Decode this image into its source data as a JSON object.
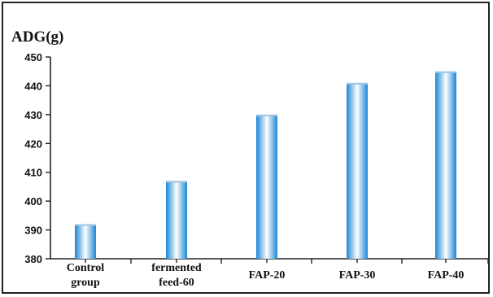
{
  "chart_data": {
    "type": "bar",
    "title": "ADG(g)",
    "xlabel": "",
    "ylabel": "",
    "categories": [
      [
        "Control",
        "group"
      ],
      [
        "fermented",
        "feed-60"
      ],
      [
        "FAP-20"
      ],
      [
        "FAP-30"
      ],
      [
        "FAP-40"
      ]
    ],
    "values": [
      392,
      407,
      430,
      441,
      445
    ],
    "ylim": [
      380,
      450
    ],
    "yticks": [
      380,
      390,
      400,
      410,
      420,
      430,
      440,
      450
    ],
    "grid": false,
    "legend": "none",
    "colors": {
      "bar_edge": "#1a86d6",
      "bar_center": "#ffffff",
      "axis": "#222222",
      "text": "#111111"
    }
  }
}
